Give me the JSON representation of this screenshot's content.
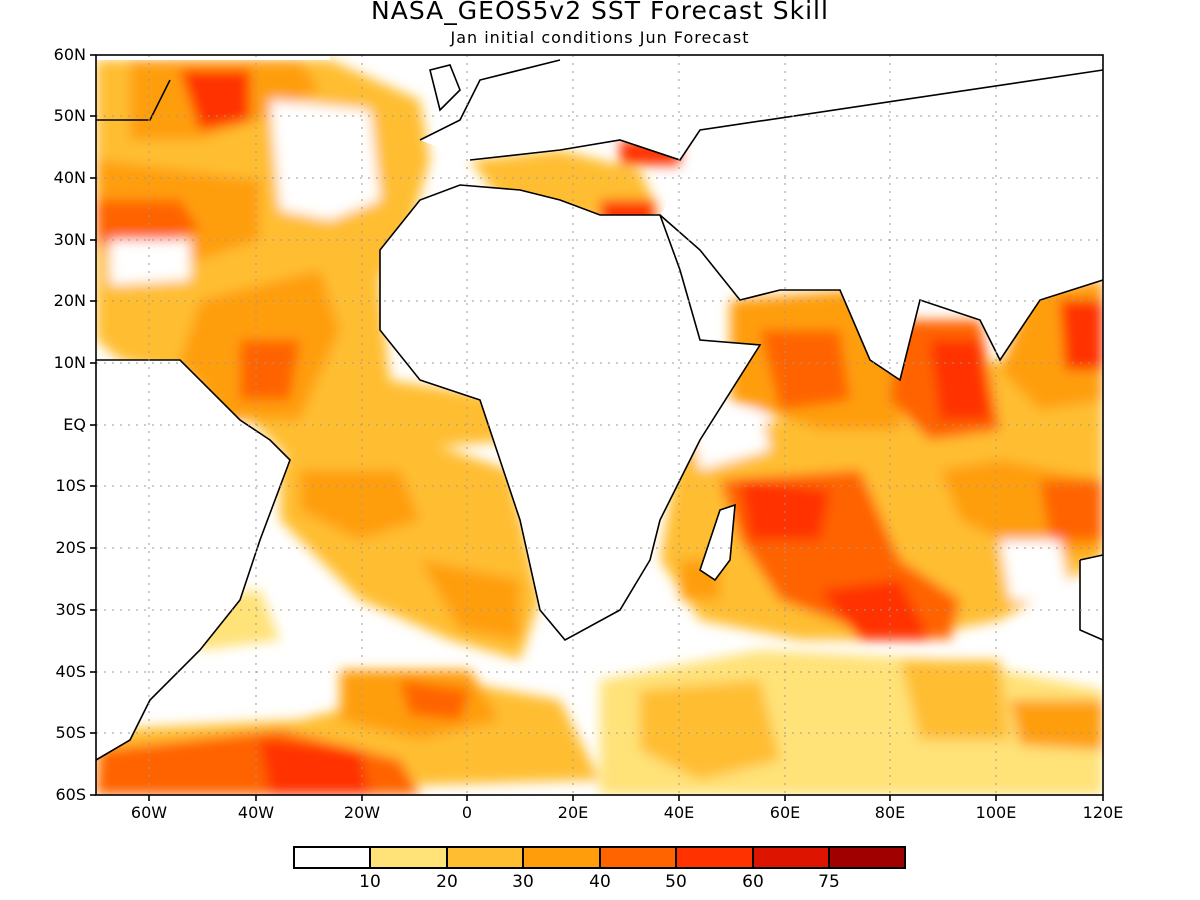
{
  "title": "NASA_GEOS5v2 SST Forecast Skill",
  "subtitle": "Jan initial conditions  Jun Forecast",
  "lat_labels": [
    "60N",
    "50N",
    "40N",
    "30N",
    "20N",
    "10N",
    "EQ",
    "10S",
    "20S",
    "30S",
    "40S",
    "50S",
    "60S"
  ],
  "lon_labels": [
    "60W",
    "40W",
    "20W",
    "0",
    "20E",
    "40E",
    "60E",
    "80E",
    "100E",
    "120E"
  ],
  "colorbar": {
    "colors": [
      "#ffffff",
      "#ffe278",
      "#ffbe32",
      "#ff9e0a",
      "#ff6400",
      "#ff3200",
      "#dc1400",
      "#a00000"
    ],
    "labels": [
      "10",
      "20",
      "30",
      "40",
      "50",
      "60",
      "75"
    ]
  }
}
